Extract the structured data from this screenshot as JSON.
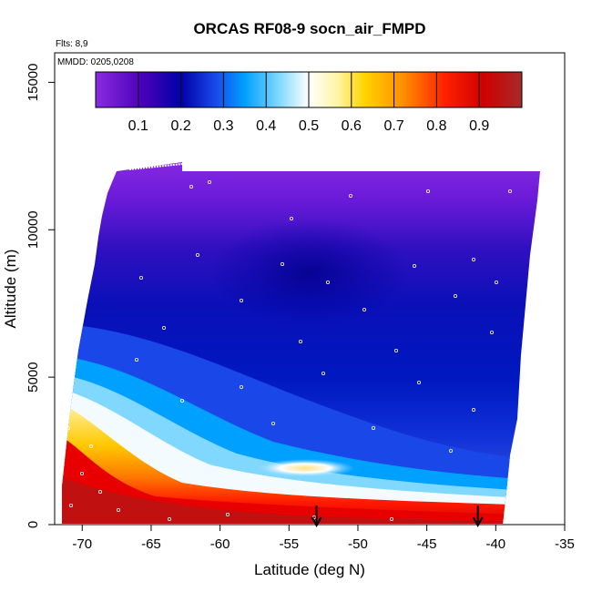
{
  "chart_data": {
    "type": "heatmap",
    "title": "ORCAS RF08-9 socn_air_FMPD",
    "note_flights": "Flts: 8,9",
    "note_dates": "MMDD: 0205,0208",
    "xlabel": "Latitude (deg N)",
    "ylabel": "Altitude (m)",
    "xlim": [
      -72,
      -35
    ],
    "ylim": [
      0,
      16000
    ],
    "x_ticks": [
      -70,
      -65,
      -60,
      -55,
      -50,
      -45,
      -40,
      -35
    ],
    "x_tick_labels": [
      "-70",
      "-65",
      "-60",
      "-55",
      "-50",
      "-45",
      "-40",
      "-35"
    ],
    "y_ticks": [
      0,
      5000,
      10000,
      15000
    ],
    "y_tick_labels": [
      "0",
      "5000",
      "10000",
      "15000"
    ],
    "colorbar": {
      "range": [
        0,
        1
      ],
      "ticks": [
        0.1,
        0.2,
        0.3,
        0.4,
        0.5,
        0.6,
        0.7,
        0.8,
        0.9
      ],
      "tick_labels": [
        "0.1",
        "0.2",
        "0.3",
        "0.4",
        "0.5",
        "0.6",
        "0.7",
        "0.8",
        "0.9"
      ],
      "colors": [
        "#8a2be2",
        "#0000a8",
        "#0020e0",
        "#00a0ff",
        "#ffffff",
        "#ffe000",
        "#ff8c00",
        "#e00000",
        "#a52a2a"
      ]
    },
    "arrows_at_latitude": [
      -53,
      -41.3
    ],
    "grid": false
  }
}
